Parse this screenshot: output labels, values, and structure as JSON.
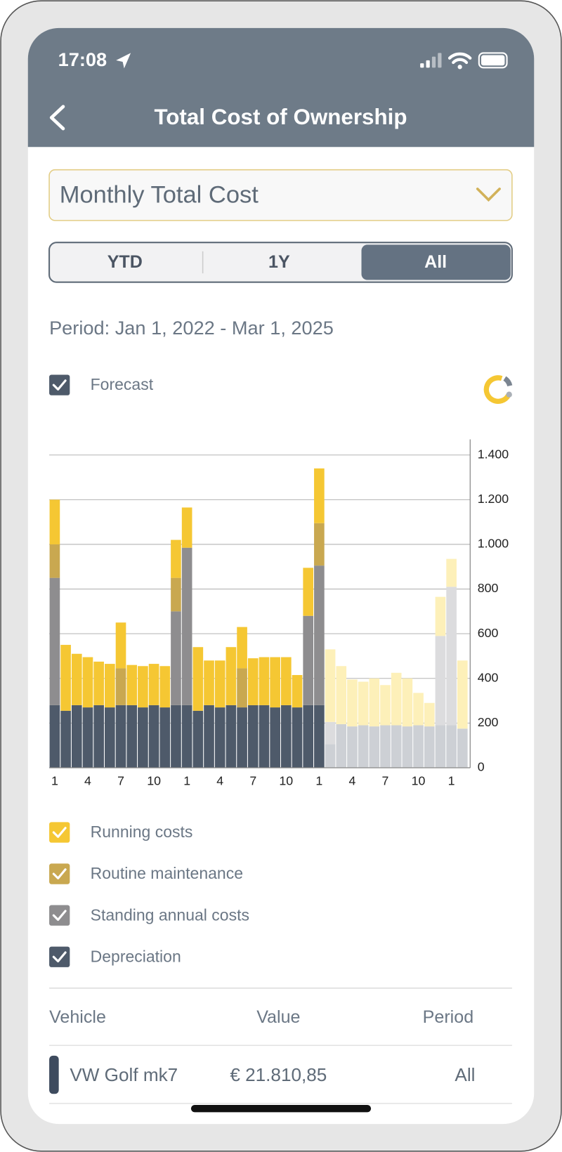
{
  "status_bar": {
    "time": "17:08"
  },
  "header": {
    "title": "Total Cost of Ownership"
  },
  "dropdown": {
    "label": "Monthly Total Cost"
  },
  "segments": {
    "labels": [
      "YTD",
      "1Y",
      "All"
    ],
    "active": 2
  },
  "period": "Period: Jan 1, 2022 - Mar 1, 2025",
  "forecast_toggle": {
    "label": "Forecast",
    "checked": true
  },
  "chart_data": {
    "type": "stacked_bar",
    "categories": [
      "1",
      null,
      null,
      "4",
      null,
      null,
      "7",
      null,
      null,
      "10",
      null,
      null,
      "1",
      null,
      null,
      "4",
      null,
      null,
      "7",
      null,
      null,
      "10",
      null,
      null,
      "1",
      null,
      null,
      "4",
      null,
      null,
      "7",
      null,
      null,
      "10",
      null,
      null,
      "1",
      null
    ],
    "forecast": [
      false,
      false,
      false,
      false,
      false,
      false,
      false,
      false,
      false,
      false,
      false,
      false,
      false,
      false,
      false,
      false,
      false,
      false,
      false,
      false,
      false,
      false,
      false,
      false,
      false,
      true,
      true,
      true,
      true,
      true,
      true,
      true,
      true,
      true,
      true,
      true,
      true,
      true
    ],
    "series": [
      {
        "name": "Running costs",
        "color": "#f5c733",
        "forecast_color": "#fdf0b9",
        "values": [
          200,
          295,
          230,
          225,
          195,
          195,
          205,
          180,
          185,
          185,
          185,
          170,
          180,
          285,
          200,
          210,
          260,
          185,
          210,
          215,
          225,
          215,
          145,
          215,
          245,
          325,
          260,
          210,
          195,
          215,
          180,
          235,
          215,
          145,
          105,
          175,
          125,
          305
        ]
      },
      {
        "name": "Routine maintenance",
        "color": "#c9a850",
        "forecast_color": "#ecdcab",
        "values": [
          150,
          0,
          0,
          0,
          0,
          0,
          165,
          0,
          0,
          0,
          0,
          150,
          0,
          0,
          0,
          0,
          0,
          175,
          0,
          0,
          0,
          0,
          0,
          0,
          190,
          0,
          0,
          0,
          0,
          0,
          0,
          0,
          0,
          0,
          0,
          0,
          0,
          0
        ]
      },
      {
        "name": "Standing annual costs",
        "color": "#8e8d8f",
        "forecast_color": "#dcdcde",
        "values": [
          570,
          0,
          0,
          0,
          0,
          0,
          0,
          0,
          0,
          0,
          0,
          420,
          705,
          0,
          0,
          0,
          0,
          0,
          0,
          0,
          0,
          0,
          0,
          400,
          625,
          100,
          0,
          0,
          0,
          0,
          0,
          0,
          0,
          0,
          0,
          400,
          620,
          0
        ]
      },
      {
        "name": "Depreciation",
        "color": "#4e5a6a",
        "forecast_color": "#cdd0d5",
        "values": [
          280,
          255,
          280,
          270,
          280,
          270,
          280,
          280,
          270,
          280,
          270,
          280,
          280,
          255,
          280,
          270,
          280,
          270,
          280,
          280,
          270,
          280,
          270,
          280,
          280,
          105,
          195,
          185,
          190,
          185,
          190,
          190,
          185,
          190,
          185,
          190,
          190,
          175
        ]
      }
    ],
    "ylim": [
      0,
      1470
    ],
    "yticks": [
      0,
      200,
      400,
      600,
      800,
      {
        "value": 1000,
        "label": "1.000"
      },
      {
        "value": 1200,
        "label": "1.200"
      },
      {
        "value": 1400,
        "label": "1.400"
      }
    ],
    "grid": true,
    "y_axis_side": "right"
  },
  "table": {
    "columns": [
      "Vehicle",
      "Value",
      "Period"
    ],
    "rows": [
      [
        "VW Golf mk7",
        "€ 21.810,85",
        "All"
      ]
    ],
    "row_colors": [
      "#3e4b5e"
    ]
  }
}
